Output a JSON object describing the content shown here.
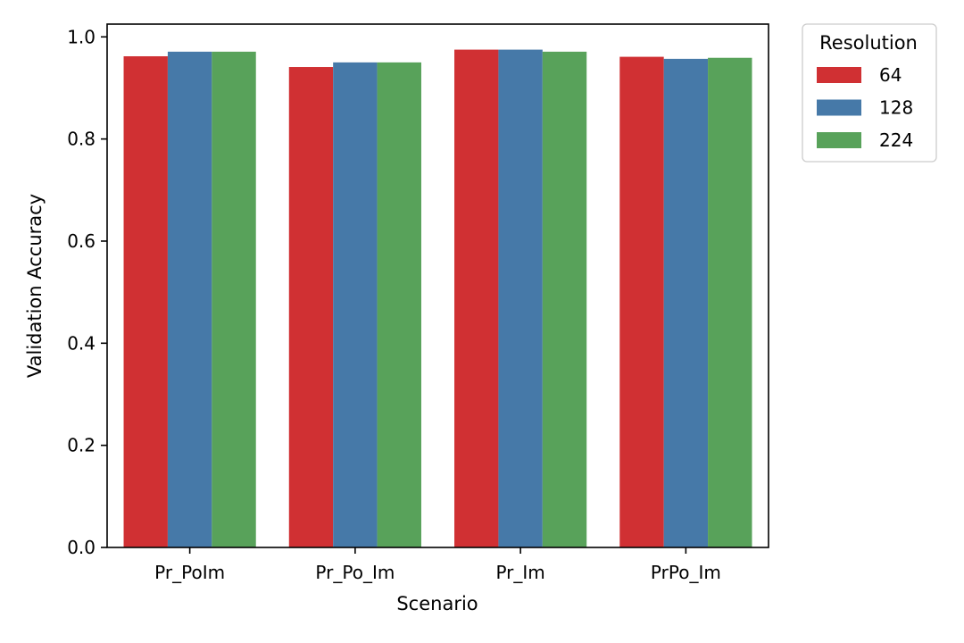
{
  "chart_data": {
    "type": "bar",
    "xlabel": "Scenario",
    "ylabel": "Validation Accuracy",
    "categories": [
      "Pr_PoIm",
      "Pr_Po_Im",
      "Pr_Im",
      "PrPo_Im"
    ],
    "ylim": [
      0,
      1.025
    ],
    "yticks": [
      "0.0",
      "0.2",
      "0.4",
      "0.6",
      "0.8",
      "1.0"
    ],
    "grid": false,
    "legend": {
      "title": "Resolution",
      "position": "outside-top-right"
    },
    "series": [
      {
        "name": "64",
        "color": "#d03033",
        "values": [
          0.962,
          0.941,
          0.975,
          0.961
        ]
      },
      {
        "name": "128",
        "color": "#4679a8",
        "values": [
          0.971,
          0.95,
          0.975,
          0.957
        ]
      },
      {
        "name": "224",
        "color": "#58a25a",
        "values": [
          0.971,
          0.95,
          0.971,
          0.959
        ]
      }
    ]
  }
}
